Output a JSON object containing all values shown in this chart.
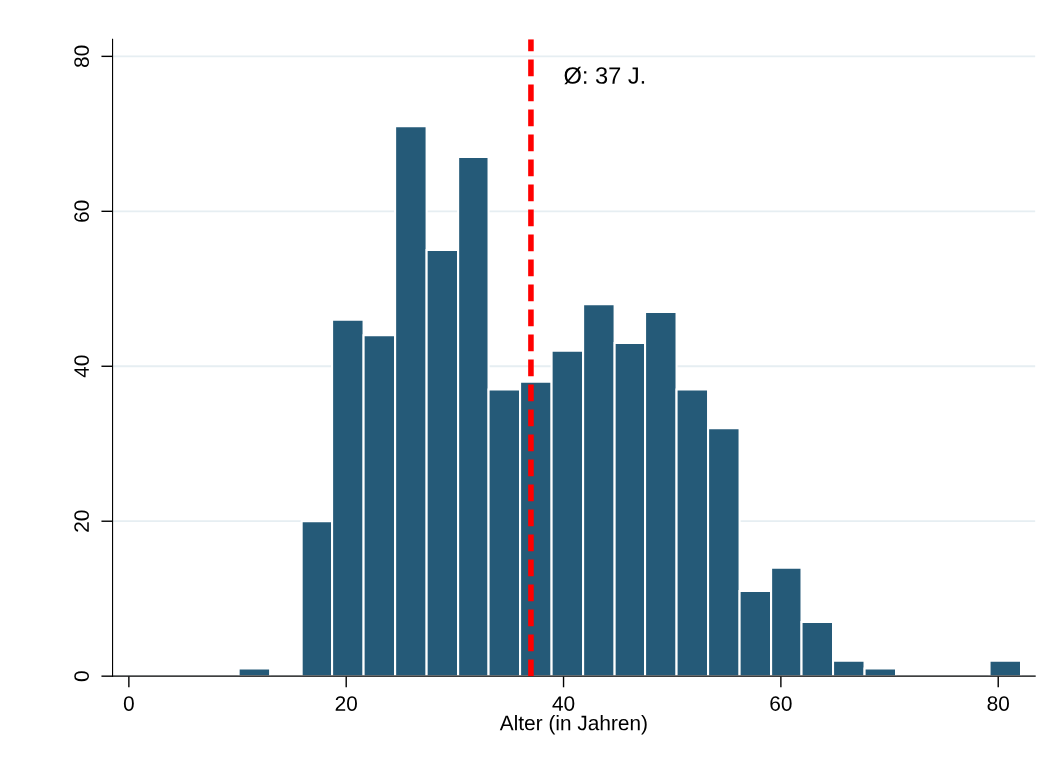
{
  "chart_data": {
    "type": "histogram",
    "xlabel": "Alter (in Jahren)",
    "bins": [
      10.1,
      13.0,
      15.9,
      18.7,
      21.6,
      24.5,
      27.4,
      30.3,
      33.1,
      36.0,
      38.9,
      41.8,
      44.7,
      47.5,
      50.4,
      53.3,
      56.2,
      59.1,
      61.9,
      64.8,
      67.7,
      70.6,
      79.2,
      82.1
    ],
    "values": [
      1,
      0,
      20,
      46,
      44,
      71,
      55,
      67,
      37,
      38,
      42,
      48,
      43,
      47,
      37,
      32,
      11,
      14,
      7,
      2,
      1,
      0,
      2
    ],
    "color": "#255a78",
    "xlim": [
      -1.5,
      83.4
    ],
    "ylim": [
      0,
      82.2
    ],
    "xticks": [
      0,
      20,
      40,
      60,
      80
    ],
    "yticks": [
      0,
      20,
      40,
      60,
      80
    ],
    "grid": "y",
    "legend": false,
    "ref_lines": [
      {
        "axis": "x",
        "value": 37,
        "label": "Ø: 37 J.",
        "color": "#ff0000",
        "line_style": "dashed"
      }
    ]
  }
}
